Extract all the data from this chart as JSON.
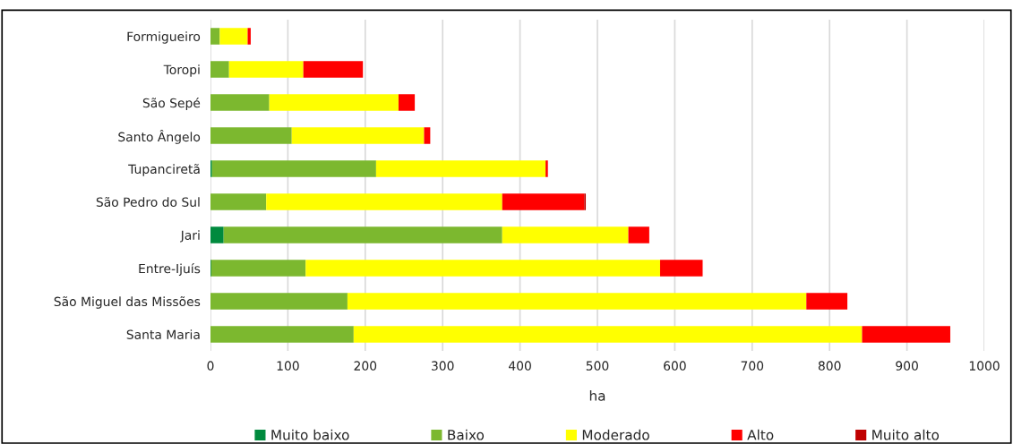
{
  "chart_data": {
    "type": "bar",
    "orientation": "horizontal",
    "stacked": true,
    "xlabel": "ha",
    "categories": [
      "Formigueiro",
      "Toropi",
      "São Sepé",
      "Santo Ângelo",
      "Tupanciretã",
      "São Pedro do Sul",
      "Jari",
      "Entre-Ijuís",
      "São Miguel das Missões",
      "Santa Maria"
    ],
    "series": [
      {
        "name": "Muito baixo",
        "color": "#008a3e",
        "values": [
          null,
          null,
          null,
          null,
          2,
          null,
          17,
          1,
          null,
          null
        ]
      },
      {
        "name": "Baixo",
        "color": "#7cb82f",
        "values": [
          12,
          24,
          76,
          105,
          212,
          72,
          360,
          122,
          177,
          185
        ]
      },
      {
        "name": "Moderado",
        "color": "#ffff00",
        "values": [
          36,
          96,
          167,
          171,
          219,
          305,
          163,
          458,
          593,
          657
        ]
      },
      {
        "name": "Alto",
        "color": "#ff0000",
        "values": [
          4,
          77,
          21,
          8,
          3,
          106,
          27,
          55,
          53,
          114
        ]
      },
      {
        "name": "Muito alto",
        "color": "#c00000",
        "values": [
          null,
          null,
          null,
          null,
          null,
          2,
          null,
          null,
          null,
          null
        ]
      }
    ],
    "xlim": [
      0,
      1000
    ],
    "xticks": [
      0,
      100,
      200,
      300,
      400,
      500,
      600,
      700,
      800,
      900,
      1000
    ],
    "grid": "x",
    "legend": "bottom"
  }
}
